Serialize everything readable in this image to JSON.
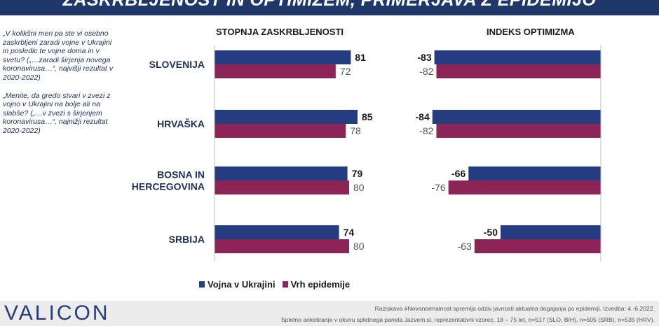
{
  "title": "ZASKRBLJENOST IN OPTIMIZEM, PRIMERJAVA Z EPIDEMIJO",
  "questions": [
    "„V kolikšni meri pa ste vi osebno zaskrbljeni zaradi vojne v Ukrajini in posledic te vojne doma in v svetu? („…zaradi širjenja novega koronavirusa…“, najvišji rezultat v 2020-2022)",
    "„Menite, da gredo stvari v zvezi z vojno v Ukrajini na bolje ali na slabše? („…v zvezi s širjenjem koronavirusa…“, najnižji rezultat 2020-2022)"
  ],
  "footer": {
    "logo": "VALICON",
    "line1": "Raziskava #Novanormalnost spremlja odziv javnosti aktualna dogajanja po epidemiji. Izvedba: 4.-6.2022.",
    "line2": "Spletno anketiranje v okviru spletnega panela Jazvem.si, reprezentativni vzorec, 18 – 75 let, n=517 (SLO, BIH), n=505 (SRB), n=535 (HRV)."
  },
  "chart_data": {
    "type": "bar",
    "orientation": "horizontal",
    "categories": [
      "SLOVENIJA",
      "HRVAŠKA",
      "BOSNA IN HERCEGOVINA",
      "SRBIJA"
    ],
    "category_lines": [
      [
        "SLOVENIJA"
      ],
      [
        "HRVAŠKA"
      ],
      [
        "BOSNA IN",
        "HERCEGOVINA"
      ],
      [
        "SRBIJA"
      ]
    ],
    "legend": [
      {
        "name": "Vojna v Ukrajini",
        "color": "#243c80"
      },
      {
        "name": "Vrh epidemije",
        "color": "#8c2457"
      }
    ],
    "panels": [
      {
        "title": "STOPNJA ZASKRBLJENOSTI",
        "xlim": [
          0,
          100
        ],
        "series": [
          {
            "name": "Vojna v Ukrajini",
            "values": [
              81,
              85,
              79,
              74
            ]
          },
          {
            "name": "Vrh epidemije",
            "values": [
              72,
              78,
              80,
              80
            ]
          }
        ]
      },
      {
        "title": "INDEKS OPTIMIZMA",
        "xlim": [
          -100,
          0
        ],
        "series": [
          {
            "name": "Vojna v Ukrajini",
            "values": [
              -83,
              -84,
              -66,
              -50
            ]
          },
          {
            "name": "Vrh epidemije",
            "values": [
              -82,
              -82,
              -76,
              -63
            ]
          }
        ]
      }
    ]
  }
}
